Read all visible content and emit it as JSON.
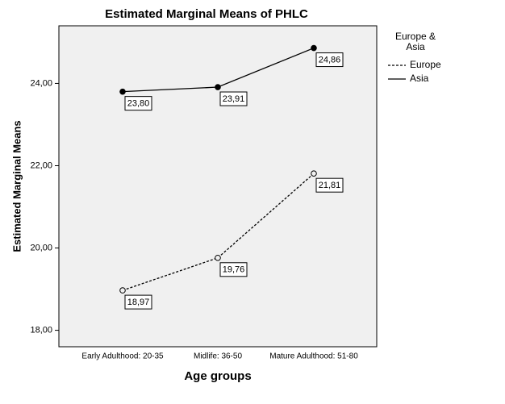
{
  "chart_data": {
    "type": "line",
    "title": "Estimated Marginal Means of PHLC",
    "x_label": "Age groups",
    "y_label": "Estimated Marginal Means",
    "categories": [
      "Early Adulthood: 20-35",
      "Midlife:  36-50",
      "Mature Adulthood: 51-80"
    ],
    "legend_title": [
      "Europe &",
      "Asia"
    ],
    "series": [
      {
        "name": "Europe",
        "color": "#000000",
        "dash": true,
        "marker": "open",
        "values": [
          18.97,
          19.76,
          21.81
        ],
        "value_labels": [
          "18,97",
          "19,76",
          "21,81"
        ]
      },
      {
        "name": "Asia",
        "color": "#000000",
        "dash": false,
        "marker": "filled",
        "values": [
          23.8,
          23.91,
          24.86
        ],
        "value_labels": [
          "23,80",
          "23,91",
          "24,86"
        ]
      }
    ],
    "ylim": [
      17.6,
      25.4
    ],
    "yticks": [
      {
        "value": 18,
        "label": "18,00"
      },
      {
        "value": 20,
        "label": "20,00"
      },
      {
        "value": 22,
        "label": "22,00"
      },
      {
        "value": 24,
        "label": "24,00"
      }
    ],
    "background": "#f0f0f0"
  }
}
